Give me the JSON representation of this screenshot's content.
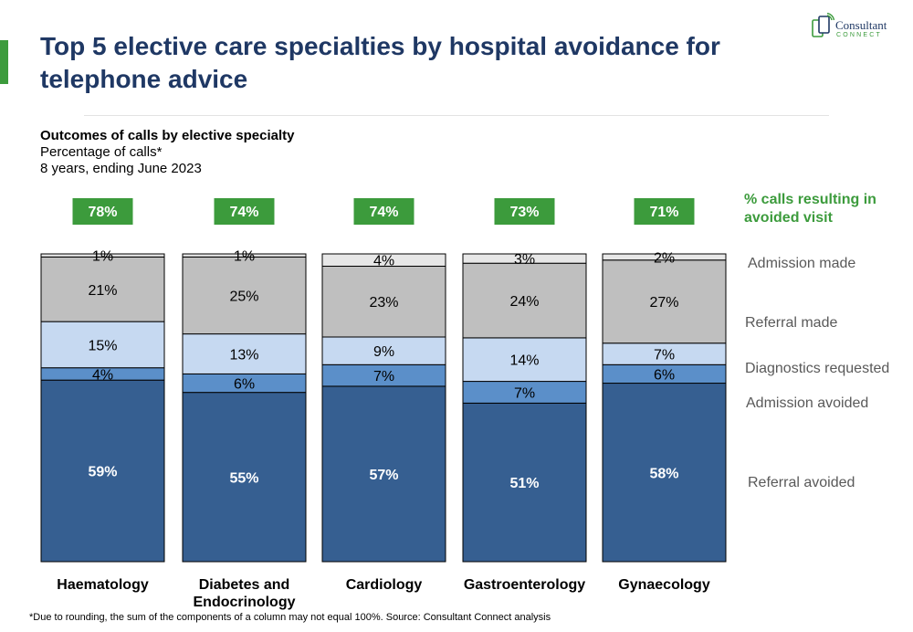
{
  "header": {
    "title": "Top 5 elective care specialties by hospital avoidance for telephone advice",
    "logo_text": "Consultant",
    "logo_subtext": "CONNECT"
  },
  "subtitle": {
    "line1": "Outcomes of calls by elective specialty",
    "line2": "Percentage of calls*",
    "line3": "8 years, ending June 2023"
  },
  "chart_data": {
    "type": "bar",
    "stacked": true,
    "categories": [
      "Haematology",
      "Diabetes and Endocrinology",
      "Cardiology",
      "Gastroenterology",
      "Gynaecology"
    ],
    "category_label_lines": [
      [
        "Haematology"
      ],
      [
        "Diabetes and",
        "Endocrinology"
      ],
      [
        "Cardiology"
      ],
      [
        "Gastroenterology"
      ],
      [
        "Gynaecology"
      ]
    ],
    "series": [
      {
        "name": "Referral avoided",
        "values": [
          59,
          55,
          57,
          51,
          58
        ],
        "labels": [
          "59%",
          "55%",
          "57%",
          "51%",
          "58%"
        ],
        "color": "#365f91",
        "label_color": "#ffffff"
      },
      {
        "name": "Admission avoided",
        "values": [
          4,
          6,
          7,
          7,
          6
        ],
        "labels": [
          "4%",
          "6%",
          "7%",
          "7%",
          "6%"
        ],
        "color": "#5b8fc9",
        "label_color": "#000000"
      },
      {
        "name": "Diagnostics requested",
        "values": [
          15,
          13,
          9,
          14,
          7
        ],
        "labels": [
          "15%",
          "13%",
          "9%",
          "14%",
          "7%"
        ],
        "color": "#c6d9f1",
        "label_color": "#000000"
      },
      {
        "name": "Referral made",
        "values": [
          21,
          25,
          23,
          24,
          27
        ],
        "labels": [
          "21%",
          "25%",
          "23%",
          "24%",
          "27%"
        ],
        "color": "#bfbfbf",
        "label_color": "#000000"
      },
      {
        "name": "Admission made",
        "values": [
          1,
          1,
          4,
          3,
          2
        ],
        "labels": [
          "1%",
          "1%",
          "4%",
          "3%",
          "2%"
        ],
        "color": "#e7e7e7",
        "label_color": "#000000"
      }
    ],
    "avoided_visit": {
      "title_lines": [
        "% calls resulting in",
        "avoided visit"
      ],
      "labels": [
        "78%",
        "74%",
        "74%",
        "73%",
        "71%"
      ],
      "color": "#3c9b3c"
    },
    "ylim": [
      0,
      100
    ],
    "legend_position": "right",
    "grid": false
  },
  "footnote": "*Due to rounding, the sum of the components of a column may not equal 100%.  Source: Consultant Connect analysis"
}
